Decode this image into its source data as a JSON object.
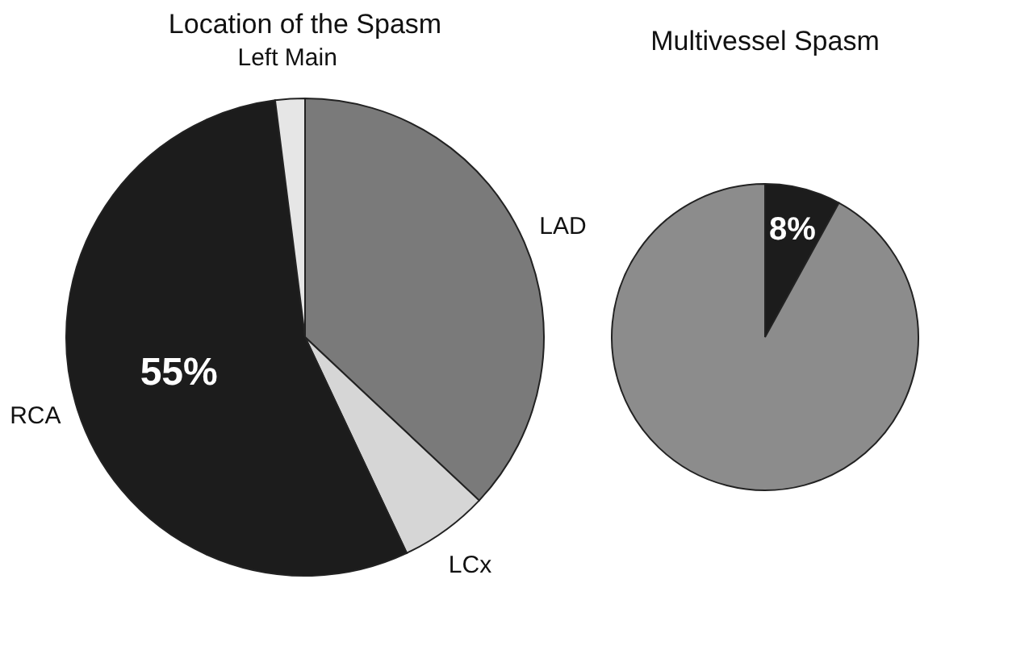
{
  "chart_data": [
    {
      "type": "pie",
      "title": "Location of the Spasm",
      "categories": [
        "LAD",
        "LCx",
        "RCA",
        "Left Main"
      ],
      "values": [
        37,
        6,
        55,
        2
      ],
      "colors": [
        "#7a7a7a",
        "#d6d6d6",
        "#1c1c1c",
        "#e6e6e6"
      ],
      "value_labels": [
        null,
        null,
        "55%",
        null
      ]
    },
    {
      "type": "pie",
      "title": "Multivessel Spasm",
      "categories": [
        null,
        null
      ],
      "values": [
        8,
        92
      ],
      "colors": [
        "#1c1c1c",
        "#8c8c8c"
      ],
      "value_labels": [
        "8%",
        null
      ]
    }
  ]
}
